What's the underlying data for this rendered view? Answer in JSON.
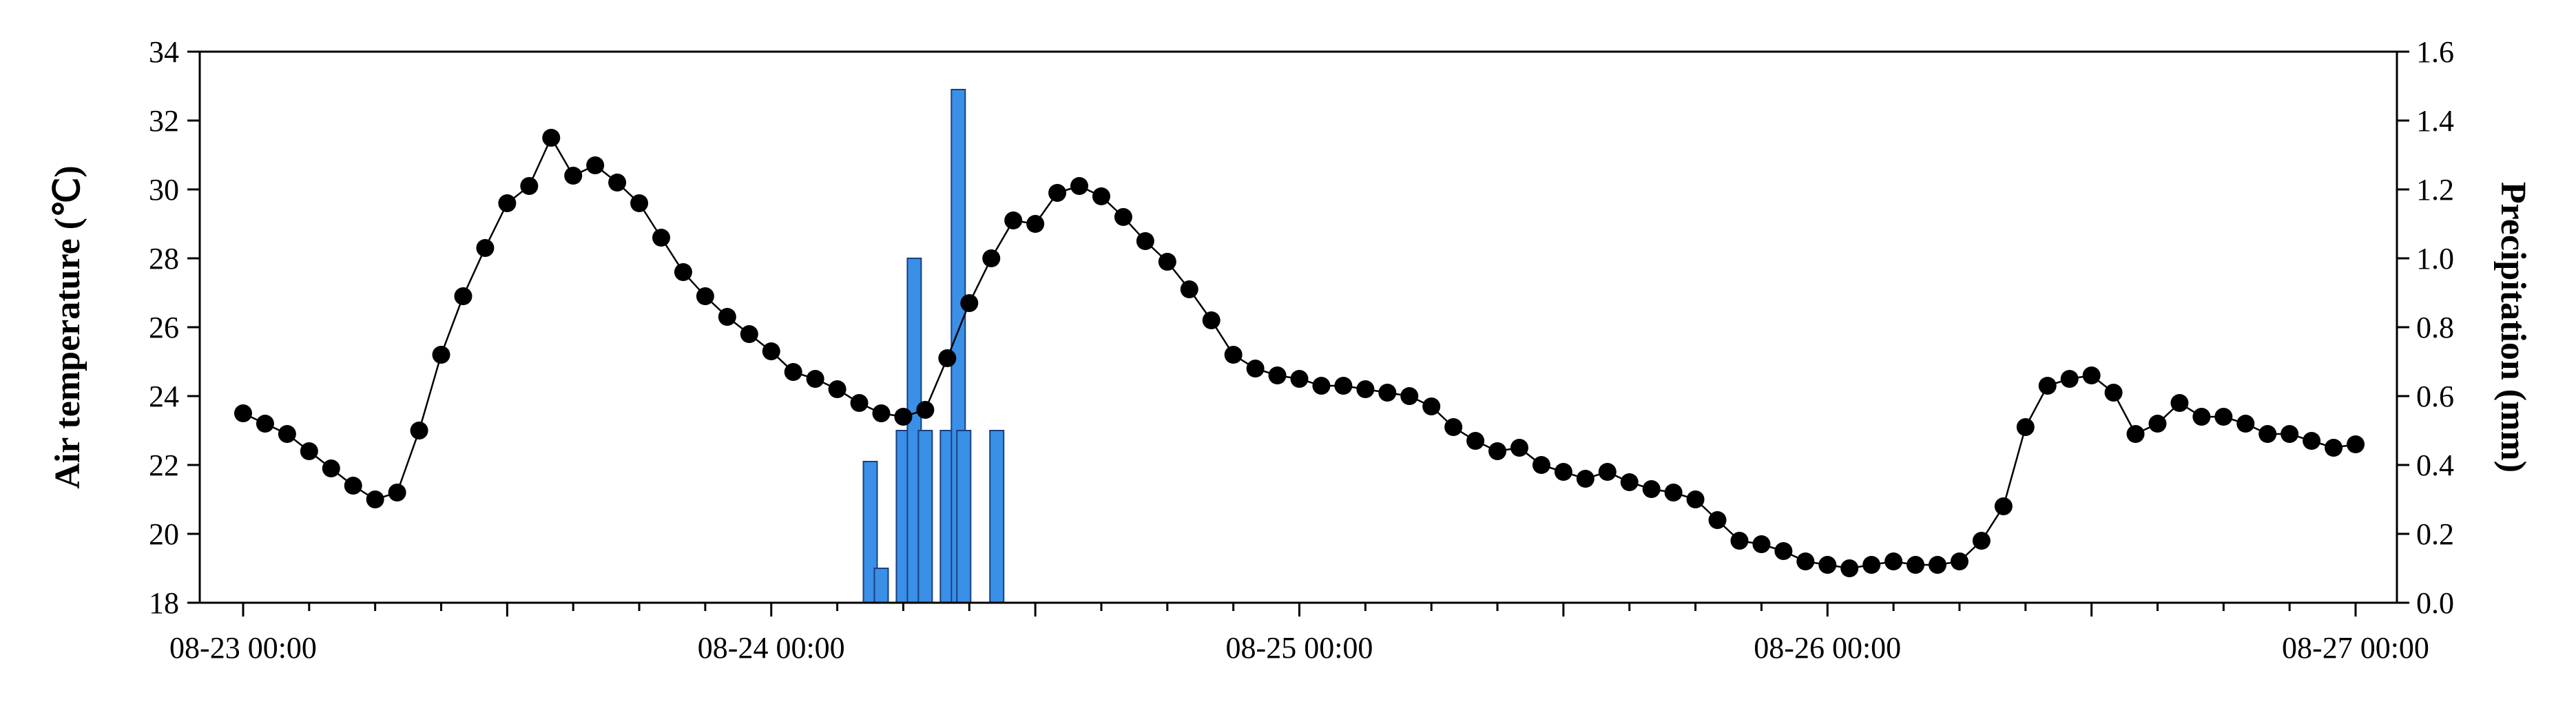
{
  "chart_data": {
    "type": "bar+line",
    "title": "",
    "xlabel": "",
    "ylabel_left": "Air temperature (℃)",
    "ylabel_right": "Precipitation (mm)",
    "x_ticks": [
      "08-23 00:00",
      "08-24 00:00",
      "08-25 00:00",
      "08-26 00:00",
      "08-27 00:00"
    ],
    "y_left": {
      "min": 18,
      "max": 34,
      "ticks": [
        "18",
        "20",
        "22",
        "24",
        "26",
        "28",
        "30",
        "32",
        "34"
      ]
    },
    "y_right": {
      "min": 0,
      "max": 1.6,
      "ticks": [
        "0.0",
        "0.2",
        "0.4",
        "0.6",
        "0.8",
        "1.0",
        "1.2",
        "1.4",
        "1.6"
      ]
    },
    "grid": false,
    "temperature_color": "#000000",
    "precip_color": "#3a8fe6",
    "temperature_series": {
      "x_hours": [
        0,
        2,
        4,
        6,
        8,
        10,
        12,
        14,
        16,
        18,
        20,
        22,
        24,
        26,
        28,
        30,
        32,
        34,
        36,
        38,
        40,
        42,
        44,
        46,
        48,
        50,
        52,
        54,
        56,
        58,
        60,
        62,
        64,
        66,
        68,
        70,
        72,
        74,
        76,
        78,
        80,
        82,
        84,
        86,
        88,
        90,
        92,
        94,
        96,
        98,
        100,
        102,
        104,
        106,
        108,
        110,
        112,
        114,
        116,
        118,
        120,
        122,
        124,
        126,
        128,
        130,
        132,
        134,
        136,
        138,
        140,
        142,
        144,
        146,
        148,
        150,
        152,
        154,
        156,
        158,
        160,
        162,
        164,
        166,
        168,
        170,
        172,
        174,
        176,
        178,
        180,
        182,
        184,
        186,
        188,
        190,
        192
      ],
      "values": [
        23.5,
        23.2,
        22.9,
        22.4,
        21.9,
        21.4,
        21.0,
        21.2,
        23.0,
        25.2,
        26.9,
        28.3,
        29.6,
        30.1,
        31.5,
        30.4,
        30.7,
        30.2,
        29.6,
        28.6,
        27.6,
        26.9,
        26.3,
        25.8,
        25.3,
        24.7,
        24.5,
        24.2,
        23.8,
        23.5,
        23.4,
        23.6,
        25.1,
        26.7,
        28.0,
        29.1,
        29.0,
        29.9,
        30.1,
        29.8,
        29.2,
        28.5,
        27.9,
        27.1,
        26.2,
        25.2,
        24.8,
        24.6,
        24.5,
        24.3,
        24.3,
        24.2,
        24.1,
        24.0,
        23.7,
        23.1,
        22.7,
        22.4,
        22.5,
        22.0,
        21.8,
        21.6,
        21.8,
        21.5,
        21.3,
        21.2,
        21.0,
        20.4,
        19.8,
        19.7,
        19.5,
        19.2,
        19.1,
        19.0,
        19.1,
        19.2,
        19.1,
        19.1,
        19.2,
        19.8,
        20.8,
        23.1,
        24.3,
        24.5,
        24.6,
        24.1,
        22.9,
        23.2,
        23.8,
        23.4,
        23.4,
        23.2,
        22.9,
        22.9,
        22.7,
        22.5,
        22.6
      ]
    },
    "precip_series": {
      "x_hours": [
        57,
        58,
        60,
        61,
        62,
        64,
        65,
        65.5,
        68.5
      ],
      "values": [
        0.41,
        0.1,
        0.5,
        1.0,
        0.5,
        0.5,
        1.49,
        0.5,
        0.5
      ]
    }
  }
}
